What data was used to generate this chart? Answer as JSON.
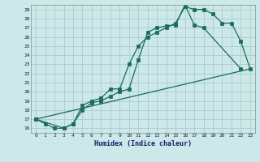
{
  "title": "",
  "xlabel": "Humidex (Indice chaleur)",
  "bg_color": "#cce8e8",
  "grid_color": "#aacccc",
  "line_color": "#1a6b5a",
  "xlim": [
    -0.5,
    23.5
  ],
  "ylim": [
    15.5,
    29.5
  ],
  "xticks": [
    0,
    1,
    2,
    3,
    4,
    5,
    6,
    7,
    8,
    9,
    10,
    11,
    12,
    13,
    14,
    15,
    16,
    17,
    18,
    19,
    20,
    21,
    22,
    23
  ],
  "yticks": [
    16,
    17,
    18,
    19,
    20,
    21,
    22,
    23,
    24,
    25,
    26,
    27,
    28,
    29
  ],
  "line1_x": [
    0,
    1,
    2,
    3,
    4,
    5,
    6,
    7,
    8,
    9,
    10,
    11,
    12,
    13,
    14,
    15,
    16,
    17,
    18,
    19,
    20,
    21,
    22,
    23
  ],
  "line1_y": [
    17.0,
    16.5,
    16.0,
    16.0,
    16.5,
    18.5,
    19.0,
    19.3,
    20.3,
    20.3,
    23.0,
    25.0,
    26.0,
    26.5,
    27.0,
    27.5,
    29.3,
    29.0,
    29.0,
    28.5,
    27.5,
    27.5,
    25.5,
    22.5
  ],
  "line2_x": [
    0,
    3,
    4,
    5,
    6,
    7,
    8,
    9,
    10,
    11,
    12,
    13,
    14,
    15,
    16,
    17,
    18,
    22
  ],
  "line2_y": [
    17.0,
    16.0,
    16.5,
    18.0,
    18.8,
    19.0,
    19.5,
    20.0,
    20.3,
    23.5,
    26.5,
    27.0,
    27.2,
    27.3,
    29.5,
    27.3,
    27.0,
    22.5
  ],
  "line3_x": [
    0,
    23
  ],
  "line3_y": [
    17.0,
    22.5
  ]
}
